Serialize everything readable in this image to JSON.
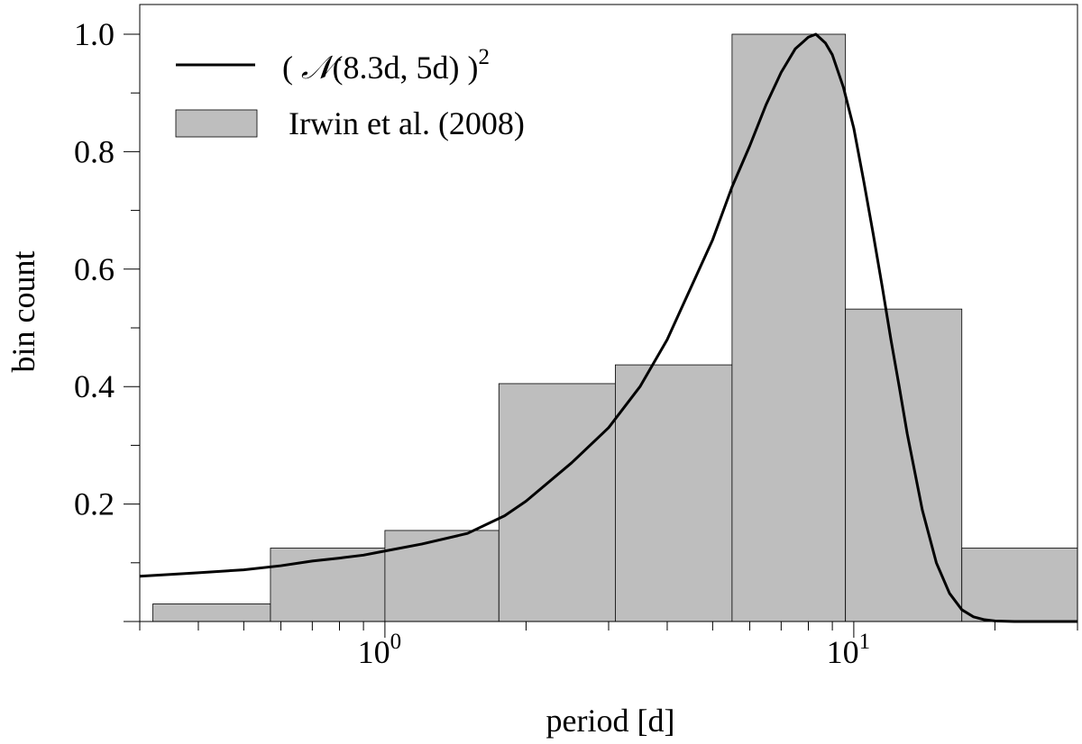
{
  "chart_data": {
    "type": "bar",
    "xscale": "log",
    "xlim": [
      0.3,
      30
    ],
    "ylim": [
      0,
      1.0
    ],
    "xlabel": "period [d]",
    "ylabel": "bin count",
    "x_tick_labels": [
      {
        "value": 1,
        "base": "10",
        "exp": "0"
      },
      {
        "value": 10,
        "base": "10",
        "exp": "1"
      }
    ],
    "y_tick_labels": [
      "0.2",
      "0.4",
      "0.6",
      "0.8",
      "1.0"
    ],
    "y_ticks": [
      0.2,
      0.4,
      0.6,
      0.8,
      1.0
    ],
    "legend": {
      "position": "top-left",
      "entries": [
        {
          "kind": "line",
          "text_prefix": "( ",
          "text_math": "𝒩",
          "text_main": "(8.3d, 5d) )",
          "text_sup": "2"
        },
        {
          "kind": "bar",
          "text": "Irwin et al. (2008)"
        }
      ]
    },
    "histogram": {
      "name": "Irwin et al. (2008)",
      "color": "#bebebe",
      "bins": [
        {
          "x0": 0.32,
          "x1": 0.57,
          "value": 0.03
        },
        {
          "x0": 0.57,
          "x1": 1.0,
          "value": 0.125
        },
        {
          "x0": 1.0,
          "x1": 1.75,
          "value": 0.155
        },
        {
          "x0": 1.75,
          "x1": 3.1,
          "value": 0.405
        },
        {
          "x0": 3.1,
          "x1": 5.5,
          "value": 0.437
        },
        {
          "x0": 5.5,
          "x1": 9.6,
          "value": 1.0
        },
        {
          "x0": 9.6,
          "x1": 17.0,
          "value": 0.532
        },
        {
          "x0": 17.0,
          "x1": 30.0,
          "value": 0.125
        }
      ]
    },
    "curve": {
      "name": "( 𝒩(8.3d, 5d) )²",
      "color": "#000000",
      "points": [
        [
          0.3,
          0.077
        ],
        [
          0.4,
          0.083
        ],
        [
          0.5,
          0.088
        ],
        [
          0.6,
          0.095
        ],
        [
          0.7,
          0.103
        ],
        [
          0.8,
          0.108
        ],
        [
          0.9,
          0.113
        ],
        [
          1.0,
          0.12
        ],
        [
          1.2,
          0.132
        ],
        [
          1.5,
          0.15
        ],
        [
          1.8,
          0.18
        ],
        [
          2.0,
          0.205
        ],
        [
          2.5,
          0.27
        ],
        [
          3.0,
          0.33
        ],
        [
          3.5,
          0.4
        ],
        [
          4.0,
          0.48
        ],
        [
          5.0,
          0.65
        ],
        [
          5.5,
          0.74
        ],
        [
          6.0,
          0.81
        ],
        [
          6.5,
          0.88
        ],
        [
          7.0,
          0.935
        ],
        [
          7.5,
          0.975
        ],
        [
          8.0,
          0.995
        ],
        [
          8.3,
          1.0
        ],
        [
          8.7,
          0.985
        ],
        [
          9.0,
          0.965
        ],
        [
          9.5,
          0.91
        ],
        [
          10.0,
          0.84
        ],
        [
          10.5,
          0.75
        ],
        [
          11.0,
          0.66
        ],
        [
          11.5,
          0.57
        ],
        [
          12.0,
          0.48
        ],
        [
          12.5,
          0.4
        ],
        [
          13.0,
          0.32
        ],
        [
          14.0,
          0.19
        ],
        [
          15.0,
          0.1
        ],
        [
          16.0,
          0.048
        ],
        [
          17.0,
          0.02
        ],
        [
          18.0,
          0.008
        ],
        [
          19.0,
          0.003
        ],
        [
          20.0,
          0.001
        ],
        [
          22.0,
          0.0
        ],
        [
          30.0,
          0.0
        ]
      ]
    }
  }
}
